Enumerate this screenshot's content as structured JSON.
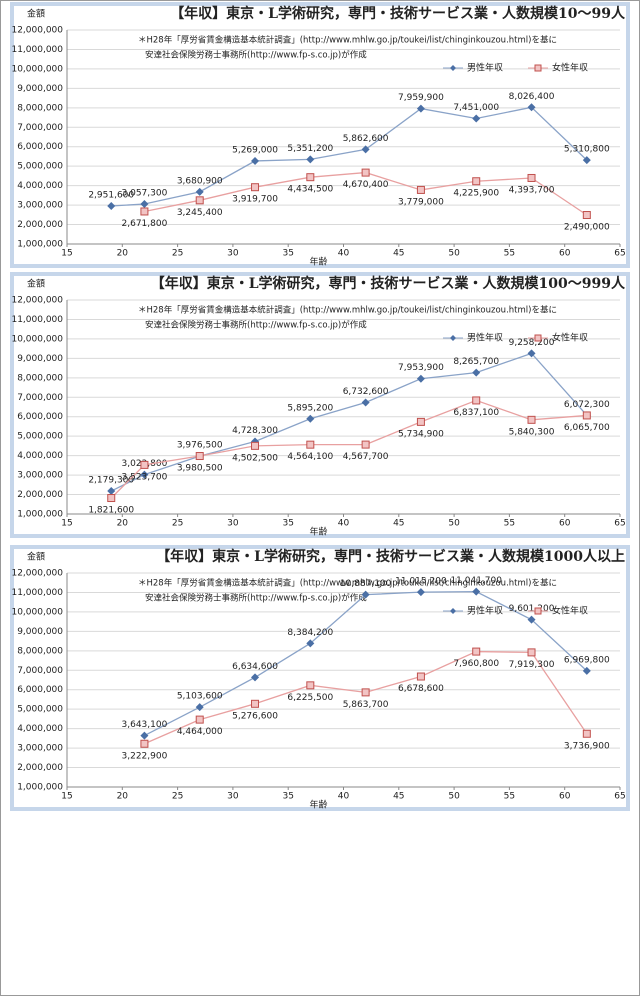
{
  "chart_data": [
    {
      "type": "line",
      "title": "【年収】東京・L学術研究，専門・技術サービス業・人数規模10～99人",
      "ylabel": "金額",
      "xlabel": "年齢",
      "annotations": [
        "＊H28年「厚労省賃金構造基本統計調査」(http://www.mhlw.go.jp/toukei/list/chinginkouzou.html)を基に",
        "安達社会保険労務士事務所(http://www.fp-s.co.jp)が作成"
      ],
      "x": [
        19,
        22,
        27,
        32,
        37,
        42,
        47,
        52,
        57,
        62
      ],
      "xlim": [
        15,
        65
      ],
      "xticks": [
        15,
        20,
        25,
        30,
        35,
        40,
        45,
        50,
        55,
        60,
        65
      ],
      "ylim": [
        1000000,
        12000000
      ],
      "yticks": [
        {
          "value": 1000000,
          "label": "1,000,000"
        },
        {
          "value": 2000000,
          "label": "2,000,000"
        },
        {
          "value": 3000000,
          "label": "3,000,000"
        },
        {
          "value": 4000000,
          "label": "4,000,000"
        },
        {
          "value": 5000000,
          "label": "5,000,000"
        },
        {
          "value": 6000000,
          "label": "6,000,000"
        },
        {
          "value": 7000000,
          "label": "7,000,000"
        },
        {
          "value": 8000000,
          "label": "8,000,000"
        },
        {
          "value": 9000000,
          "label": "9,000,000"
        },
        {
          "value": 10000000,
          "label": "10,000,000"
        },
        {
          "value": 11000000,
          "label": "11,000,000"
        },
        {
          "value": 12000000,
          "label": "12,000,000"
        }
      ],
      "grid": true,
      "series": [
        {
          "name": "男性年収",
          "color": "#4a6fa5",
          "values": [
            2951600,
            3057300,
            3680900,
            5269000,
            5351200,
            5862600,
            7959900,
            7451000,
            8026400,
            5310800
          ],
          "value_labels": [
            "2,951,600",
            "3,057,300",
            "3,680,900",
            "5,269,000",
            "5,351,200",
            "5,862,600",
            "7,959,900",
            "7,451,000",
            "8,026,400",
            "5,310,800"
          ]
        },
        {
          "name": "女性年収",
          "color": "#c0504d",
          "values": [
            null,
            2671800,
            3245400,
            3919700,
            4434500,
            4670400,
            3779000,
            4225900,
            4393700,
            2490000
          ],
          "value_labels": [
            null,
            "2,671,800",
            "3,245,400",
            "3,919,700",
            "4,434,500",
            "4,670,400",
            "3,779,000",
            "4,225,900",
            "4,393,700",
            "2,490,000"
          ]
        }
      ]
    },
    {
      "type": "line",
      "title": "【年収】東京・L学術研究，専門・技術サービス業・人数規模100～999人",
      "ylabel": "金額",
      "xlabel": "年齢",
      "annotations": [
        "＊H28年「厚労省賃金構造基本統計調査」(http://www.mhlw.go.jp/toukei/list/chinginkouzou.html)を基に",
        "安達社会保険労務士事務所(http://www.fp-s.co.jp)が作成"
      ],
      "x": [
        19,
        22,
        27,
        32,
        37,
        42,
        47,
        52,
        57,
        62
      ],
      "xlim": [
        15,
        65
      ],
      "xticks": [
        15,
        20,
        25,
        30,
        35,
        40,
        45,
        50,
        55,
        60,
        65
      ],
      "ylim": [
        1000000,
        12000000
      ],
      "yticks": [
        {
          "value": 1000000,
          "label": "1,000,000"
        },
        {
          "value": 2000000,
          "label": "2,000,000"
        },
        {
          "value": 3000000,
          "label": "3,000,000"
        },
        {
          "value": 4000000,
          "label": "4,000,000"
        },
        {
          "value": 5000000,
          "label": "5,000,000"
        },
        {
          "value": 6000000,
          "label": "6,000,000"
        },
        {
          "value": 7000000,
          "label": "7,000,000"
        },
        {
          "value": 8000000,
          "label": "8,000,000"
        },
        {
          "value": 9000000,
          "label": "9,000,000"
        },
        {
          "value": 10000000,
          "label": "10,000,000"
        },
        {
          "value": 11000000,
          "label": "11,000,000"
        },
        {
          "value": 12000000,
          "label": "12,000,000"
        }
      ],
      "grid": true,
      "series": [
        {
          "name": "男性年収",
          "color": "#4a6fa5",
          "values": [
            2179300,
            3023800,
            3976500,
            4728300,
            5895200,
            6732600,
            7953900,
            8265700,
            9258200,
            6072300
          ],
          "value_labels": [
            "2,179,300",
            "3,023,800",
            "3,976,500",
            "4,728,300",
            "5,895,200",
            "6,732,600",
            "7,953,900",
            "8,265,700",
            "9,258,200",
            "6,072,300"
          ]
        },
        {
          "name": "女性年収",
          "color": "#c0504d",
          "values": [
            1821600,
            3523700,
            3980500,
            4502500,
            4564100,
            4567700,
            5734900,
            6837100,
            5840300,
            6065700
          ],
          "value_labels": [
            "1,821,600",
            "3,523,700",
            "3,980,500",
            "4,502,500",
            "4,564,100",
            "4,567,700",
            "5,734,900",
            "6,837,100",
            "5,840,300",
            "6,065,700"
          ]
        }
      ]
    },
    {
      "type": "line",
      "title": "【年収】東京・L学術研究，専門・技術サービス業・人数規模1000人以上",
      "ylabel": "金額",
      "xlabel": "年齢",
      "annotations": [
        "＊H28年「厚労省賃金構造基本統計調査」(http://www.mhlw.go.jp/toukei/list/chinginkouzou.html)を基に",
        "安達社会保険労務士事務所(http://www.fp-s.co.jp)が作成"
      ],
      "x": [
        22,
        27,
        32,
        37,
        42,
        47,
        52,
        57,
        62
      ],
      "xlim": [
        15,
        65
      ],
      "xticks": [
        15,
        20,
        25,
        30,
        35,
        40,
        45,
        50,
        55,
        60,
        65
      ],
      "ylim": [
        1000000,
        12000000
      ],
      "yticks": [
        {
          "value": 1000000,
          "label": "1,000,000"
        },
        {
          "value": 2000000,
          "label": "2,000,000"
        },
        {
          "value": 3000000,
          "label": "3,000,000"
        },
        {
          "value": 4000000,
          "label": "4,000,000"
        },
        {
          "value": 5000000,
          "label": "5,000,000"
        },
        {
          "value": 6000000,
          "label": "6,000,000"
        },
        {
          "value": 7000000,
          "label": "7,000,000"
        },
        {
          "value": 8000000,
          "label": "8,000,000"
        },
        {
          "value": 9000000,
          "label": "9,000,000"
        },
        {
          "value": 10000000,
          "label": "10,000,000"
        },
        {
          "value": 11000000,
          "label": "11,000,000"
        },
        {
          "value": 12000000,
          "label": "12,000,000"
        }
      ],
      "grid": true,
      "series": [
        {
          "name": "男性年収",
          "color": "#4a6fa5",
          "values": [
            3643100,
            5103600,
            6634600,
            8384200,
            10887100,
            11015200,
            11041700,
            9601200,
            6969800
          ],
          "value_labels": [
            "3,643,100",
            "5,103,600",
            "6,634,600",
            "8,384,200",
            "10,887,100",
            "11,015,200",
            "11,041,700",
            "9,601,200",
            "6,969,800"
          ]
        },
        {
          "name": "女性年収",
          "color": "#c0504d",
          "values": [
            3222900,
            4464000,
            5276600,
            6225500,
            5863700,
            6678600,
            7960800,
            7919300,
            3736900
          ],
          "value_labels": [
            "3,222,900",
            "4,464,000",
            "5,276,600",
            "6,225,500",
            "5,863,700",
            "6,678,600",
            "7,960,800",
            "7,919,300",
            "3,736,900"
          ]
        }
      ]
    }
  ]
}
